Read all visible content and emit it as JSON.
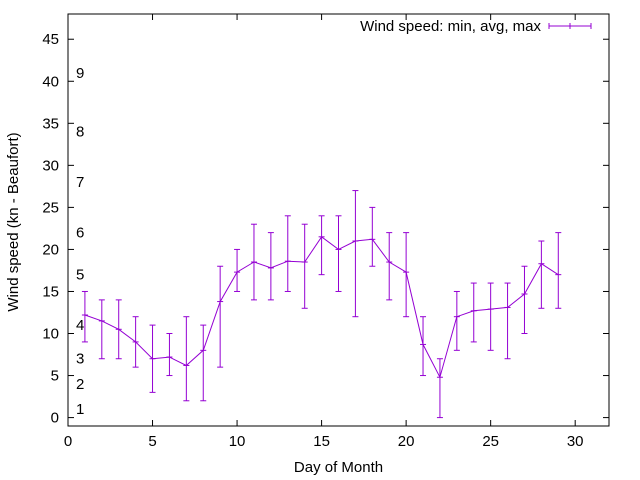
{
  "chart_data": {
    "type": "line",
    "title": "",
    "xlabel": "Day of Month",
    "ylabel": "Wind speed (kn - Beaufort)",
    "xlim": [
      0,
      32
    ],
    "ylim": [
      -1,
      48
    ],
    "x_ticks": [
      0,
      5,
      10,
      15,
      20,
      25,
      30
    ],
    "y_ticks": [
      0,
      5,
      10,
      15,
      20,
      25,
      30,
      35,
      40,
      45
    ],
    "grid": false,
    "legend_position": "top-right",
    "beaufort_labels": [
      {
        "label": "1",
        "at": 1
      },
      {
        "label": "2",
        "at": 4
      },
      {
        "label": "3",
        "at": 7
      },
      {
        "label": "4",
        "at": 11
      },
      {
        "label": "5",
        "at": 17
      },
      {
        "label": "6",
        "at": 22
      },
      {
        "label": "7",
        "at": 28
      },
      {
        "label": "8",
        "at": 34
      },
      {
        "label": "9",
        "at": 41
      }
    ],
    "series": [
      {
        "name": "Wind speed: min, avg, max",
        "color": "#9400d3",
        "x": [
          1,
          2,
          3,
          4,
          5,
          6,
          7,
          8,
          9,
          10,
          11,
          12,
          13,
          14,
          15,
          16,
          17,
          18,
          19,
          20,
          21,
          22,
          23,
          24,
          25,
          26,
          27,
          28,
          29
        ],
        "avg": [
          12.2,
          11.5,
          10.5,
          9.0,
          7.0,
          7.2,
          6.2,
          8.0,
          13.8,
          17.3,
          18.5,
          17.8,
          18.6,
          18.5,
          21.5,
          20.0,
          21.0,
          21.2,
          18.5,
          17.3,
          8.7,
          4.8,
          12.0,
          12.7,
          12.9,
          13.1,
          14.7,
          18.3,
          17.0
        ],
        "min": [
          9,
          7,
          7,
          6,
          3,
          5,
          2,
          2,
          6,
          15,
          14,
          14,
          15,
          13,
          17,
          15,
          12,
          18,
          14,
          12,
          5,
          0,
          8,
          9,
          8,
          7,
          10,
          13,
          13
        ],
        "max": [
          15,
          14,
          14,
          12,
          11,
          10,
          12,
          11,
          18,
          20,
          23,
          22,
          24,
          23,
          24,
          24,
          27,
          25,
          22,
          22,
          12,
          7,
          15,
          16,
          16,
          16,
          18,
          21,
          22
        ]
      }
    ]
  }
}
